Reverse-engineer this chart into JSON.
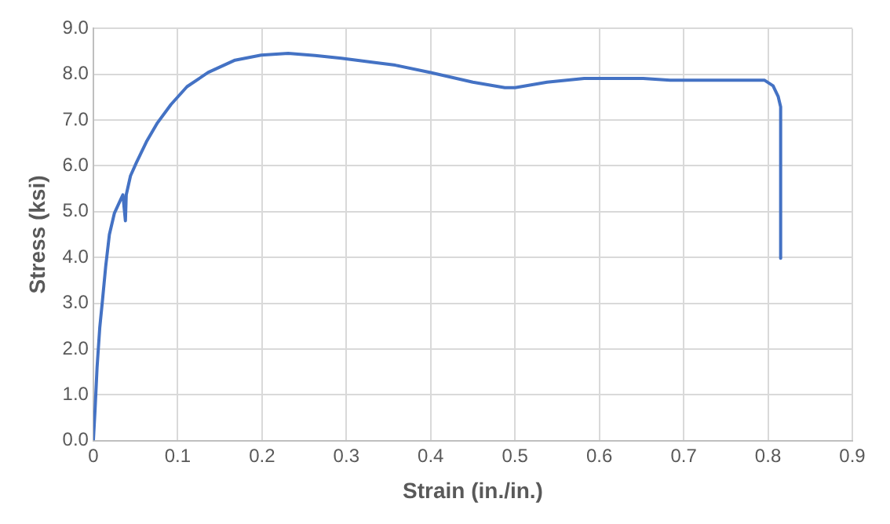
{
  "chart_data": {
    "type": "line",
    "xlabel": "Strain (in./in.)",
    "ylabel": "Stress (ksi)",
    "x": [
      0,
      0.002,
      0.0044,
      0.0076,
      0.011,
      0.0146,
      0.019,
      0.025,
      0.035,
      0.038,
      0.039,
      0.044,
      0.051,
      0.063,
      0.076,
      0.092,
      0.111,
      0.136,
      0.168,
      0.199,
      0.231,
      0.263,
      0.294,
      0.332,
      0.358,
      0.4,
      0.45,
      0.488,
      0.5,
      0.538,
      0.582,
      0.652,
      0.684,
      0.796,
      0.806,
      0.812,
      0.815,
      0.815
    ],
    "series": [
      {
        "color": "#4472c4",
        "values": [
          0,
          0.67,
          1.6,
          2.47,
          3.1,
          3.8,
          4.5,
          4.97,
          5.37,
          4.8,
          5.37,
          5.78,
          6.07,
          6.53,
          6.94,
          7.34,
          7.73,
          8.04,
          8.31,
          8.42,
          8.46,
          8.41,
          8.35,
          8.26,
          8.2,
          8.04,
          7.83,
          7.71,
          7.71,
          7.83,
          7.91,
          7.91,
          7.87,
          7.87,
          7.75,
          7.52,
          7.29,
          3.98
        ]
      }
    ],
    "xlim": [
      0,
      0.9
    ],
    "xticks": [
      0,
      0.1,
      0.2,
      0.3,
      0.4,
      0.5,
      0.6,
      0.7,
      0.8,
      0.9
    ],
    "ylim": [
      0,
      9
    ],
    "yticks": [
      {
        "value": 0,
        "label": "0.0"
      },
      {
        "value": 1,
        "label": "1.0"
      },
      {
        "value": 2,
        "label": "2.0"
      },
      {
        "value": 3,
        "label": "3.0"
      },
      {
        "value": 4,
        "label": "4.0"
      },
      {
        "value": 5,
        "label": "5.0"
      },
      {
        "value": 6,
        "label": "6.0"
      },
      {
        "value": 7,
        "label": "7.0"
      },
      {
        "value": 8,
        "label": "8.0"
      },
      {
        "value": 9,
        "label": "9.0"
      }
    ],
    "grid": true,
    "legend": false,
    "marker": "none",
    "line_style": "solid"
  }
}
